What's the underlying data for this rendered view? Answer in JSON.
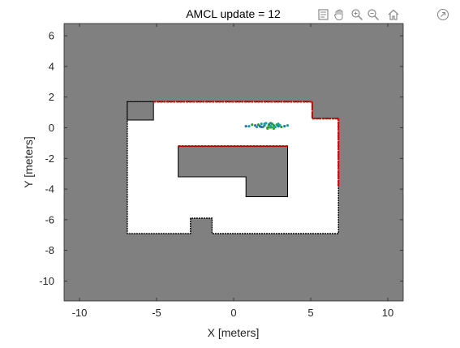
{
  "window": {
    "plot_title": "AMCL update = 12"
  },
  "toolbar": {
    "icons": [
      "data-tips-icon",
      "pan-hand-icon",
      "zoom-in-icon",
      "zoom-out-icon",
      "home-restore-icon",
      "export-icon"
    ]
  },
  "colors": {
    "map_occupied": "#808080",
    "map_free": "#ffffff",
    "laser_scan": "#e00000",
    "particles_blue": "#1f77b4",
    "particles_green": "#2ca02c",
    "particles_teal": "#17a0a0"
  },
  "chart_data": {
    "type": "scatter",
    "title": "AMCL update = 12",
    "xlabel": "X [meters]",
    "ylabel": "Y [meters]",
    "xlim": [
      -11,
      11
    ],
    "ylim": [
      -11.3,
      6.8
    ],
    "xticks": [
      -10,
      -5,
      0,
      5,
      10
    ],
    "yticks": [
      6,
      4,
      2,
      0,
      -2,
      -4,
      -6,
      -8,
      -10
    ],
    "xtick_labels": [
      "-10",
      "-5",
      "0",
      "5",
      "10"
    ],
    "ytick_labels": [
      "6",
      "4",
      "2",
      "0",
      "-2",
      "-4",
      "-6",
      "-8",
      "-10"
    ],
    "map": {
      "free_space_outline_xy": [
        [
          -6.9,
          1.7
        ],
        [
          5.1,
          1.7
        ],
        [
          5.1,
          0.6
        ],
        [
          6.8,
          0.6
        ],
        [
          6.8,
          -6.9
        ],
        [
          -1.4,
          -6.9
        ],
        [
          -1.4,
          -5.9
        ],
        [
          -2.8,
          -5.9
        ],
        [
          -2.8,
          -6.9
        ],
        [
          -6.9,
          -6.9
        ]
      ],
      "obstacle_blocks_xy": [
        [
          [
            -6.9,
            1.7
          ],
          [
            -5.2,
            1.7
          ],
          [
            -5.2,
            0.5
          ],
          [
            -6.9,
            0.5
          ]
        ],
        [
          [
            -3.6,
            -1.2
          ],
          [
            3.5,
            -1.2
          ],
          [
            3.5,
            -4.5
          ],
          [
            0.8,
            -4.5
          ],
          [
            0.8,
            -3.2
          ],
          [
            -3.6,
            -3.2
          ]
        ]
      ]
    },
    "laser_scan_segments_xy": [
      [
        [
          -5.2,
          1.7
        ],
        [
          5.1,
          1.7
        ]
      ],
      [
        [
          5.1,
          1.7
        ],
        [
          5.1,
          0.6
        ]
      ],
      [
        [
          5.1,
          0.6
        ],
        [
          6.8,
          0.6
        ]
      ],
      [
        [
          6.8,
          0.6
        ],
        [
          6.8,
          -3.8
        ]
      ],
      [
        [
          -3.6,
          -1.2
        ],
        [
          3.5,
          -1.2
        ]
      ]
    ],
    "particles": {
      "x": [
        0.8,
        1.0,
        1.2,
        1.4,
        1.5,
        1.6,
        1.7,
        1.8,
        1.9,
        2.0,
        2.1,
        2.2,
        2.3,
        2.4,
        2.5,
        2.6,
        2.7,
        2.8,
        2.9,
        3.0,
        3.1,
        3.3,
        3.5,
        2.2,
        2.4,
        2.0,
        2.6,
        1.8,
        2.9
      ],
      "y": [
        0.1,
        0.1,
        0.2,
        0.15,
        0.05,
        0.2,
        0.1,
        0.25,
        0.05,
        0.15,
        0.3,
        0.0,
        0.2,
        0.1,
        0.25,
        0.15,
        0.05,
        0.2,
        0.1,
        0.15,
        0.05,
        0.1,
        0.15,
        -0.05,
        0.3,
        0.25,
        -0.05,
        0.05,
        0.25
      ],
      "estimate": [
        2.4,
        0.15
      ]
    },
    "grid": false,
    "legend": "none"
  }
}
